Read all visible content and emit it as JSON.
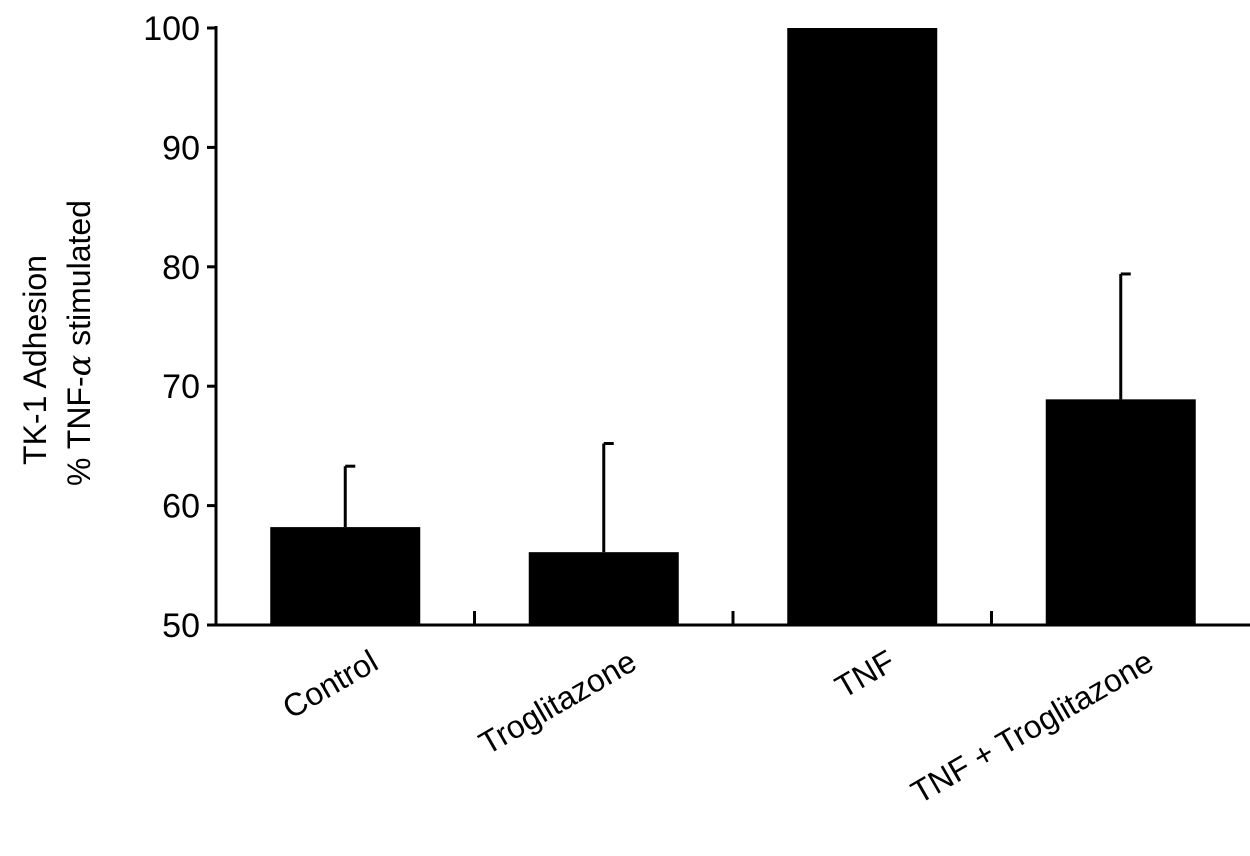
{
  "chart_data": {
    "type": "bar",
    "categories": [
      "Control",
      "Troglitazone",
      "TNF",
      "TNF + Troglitazone"
    ],
    "values": [
      58.2,
      56.1,
      100,
      68.9
    ],
    "error_upper": [
      5.1,
      9.1,
      0,
      10.5
    ],
    "ylabel_line1": "TK-1 Adhesion",
    "ylabel_line2_prefix": "% TNF-",
    "ylabel_alpha": "α",
    "ylabel_line2_suffix": " stimulated",
    "ylim": [
      50,
      100
    ],
    "yticks": [
      50,
      60,
      70,
      80,
      90,
      100
    ],
    "grid": false,
    "legend": "none",
    "bar_color": "#000000",
    "axis_color": "#000000"
  }
}
